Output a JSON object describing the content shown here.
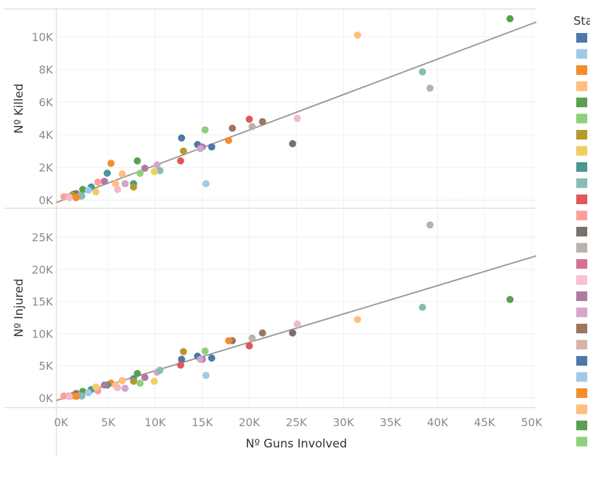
{
  "chart_data": {
    "type": "scatter",
    "x_axis": {
      "label": "Nº Guns Involved",
      "range": [
        -500,
        50500
      ],
      "ticks": [
        0,
        5000,
        10000,
        15000,
        20000,
        25000,
        30000,
        35000,
        40000,
        45000,
        50000
      ],
      "tick_labels": [
        "0K",
        "5K",
        "10K",
        "15K",
        "20K",
        "25K",
        "30K",
        "35K",
        "40K",
        "45K",
        "50K"
      ]
    },
    "panels": [
      {
        "ylabel": "Nº Killed",
        "ylim": [
          -500,
          11700
        ],
        "ticks": [
          0,
          2000,
          4000,
          6000,
          8000,
          10000
        ],
        "tick_labels": [
          "0K",
          "2K",
          "4K",
          "6K",
          "8K",
          "10K"
        ],
        "trend_line": {
          "x": [
            -500,
            50500
          ],
          "y": [
            -150,
            10900
          ]
        }
      },
      {
        "ylabel": "Nº Injured",
        "ylim": [
          -1500,
          29500
        ],
        "ticks": [
          0,
          5000,
          10000,
          15000,
          20000,
          25000
        ],
        "tick_labels": [
          "0K",
          "5K",
          "10K",
          "15K",
          "20K",
          "25K"
        ],
        "trend_line": {
          "x": [
            -500,
            50500
          ],
          "y": [
            -400,
            22100
          ]
        }
      }
    ],
    "points": [
      {
        "x": 47700,
        "killed": 11100,
        "injured": 15300,
        "color": "#59a14f"
      },
      {
        "x": 31500,
        "killed": 10100,
        "injured": 12200,
        "color": "#ffbe7d"
      },
      {
        "x": 38400,
        "killed": 7850,
        "injured": 14100,
        "color": "#86bcb6"
      },
      {
        "x": 39200,
        "killed": 6850,
        "injured": 26900,
        "color": "#bab0ac"
      },
      {
        "x": 25100,
        "killed": 5000,
        "injured": 11500,
        "color": "#f5b8cb"
      },
      {
        "x": 20000,
        "killed": 4950,
        "injured": 8100,
        "color": "#e15759"
      },
      {
        "x": 21400,
        "killed": 4800,
        "injured": 10100,
        "color": "#9d7660"
      },
      {
        "x": 20300,
        "killed": 4500,
        "injured": 9300,
        "color": "#bab0ac"
      },
      {
        "x": 18200,
        "killed": 4400,
        "injured": 8900,
        "color": "#9d7660"
      },
      {
        "x": 15300,
        "killed": 4300,
        "injured": 7300,
        "color": "#8cd17d"
      },
      {
        "x": 12800,
        "killed": 3800,
        "injured": 6000,
        "color": "#4e79a7"
      },
      {
        "x": 17800,
        "killed": 3650,
        "injured": 8900,
        "color": "#f28e2b"
      },
      {
        "x": 24600,
        "killed": 3450,
        "injured": 10100,
        "color": "#79706e"
      },
      {
        "x": 14500,
        "killed": 3400,
        "injured": 6500,
        "color": "#4e79a7"
      },
      {
        "x": 16000,
        "killed": 3250,
        "injured": 6200,
        "color": "#4e79a7"
      },
      {
        "x": 15000,
        "killed": 3250,
        "injured": 6000,
        "color": "#b07aa1"
      },
      {
        "x": 14800,
        "killed": 3150,
        "injured": 6000,
        "color": "#d4a6c8"
      },
      {
        "x": 13000,
        "killed": 3000,
        "injured": 7200,
        "color": "#b6992d"
      },
      {
        "x": 8100,
        "killed": 2400,
        "injured": 3800,
        "color": "#59a14f"
      },
      {
        "x": 12700,
        "killed": 2400,
        "injured": 5100,
        "color": "#e15759"
      },
      {
        "x": 5300,
        "killed": 2250,
        "injured": 2300,
        "color": "#f28e2b"
      },
      {
        "x": 10200,
        "killed": 2150,
        "injured": 4000,
        "color": "#d4a6c8"
      },
      {
        "x": 8900,
        "killed": 1950,
        "injured": 3200,
        "color": "#b07aa1"
      },
      {
        "x": 10500,
        "killed": 1800,
        "injured": 4300,
        "color": "#86bcb6"
      },
      {
        "x": 9900,
        "killed": 1750,
        "injured": 2600,
        "color": "#f1ce63"
      },
      {
        "x": 4900,
        "killed": 1650,
        "injured": 2000,
        "color": "#499894"
      },
      {
        "x": 8400,
        "killed": 1650,
        "injured": 2300,
        "color": "#8cd17d"
      },
      {
        "x": 6500,
        "killed": 1600,
        "injured": 2700,
        "color": "#ffbe7d"
      },
      {
        "x": 4600,
        "killed": 1150,
        "injured": 2000,
        "color": "#b07aa1"
      },
      {
        "x": 3900,
        "killed": 1100,
        "injured": 1100,
        "color": "#ff9d9a"
      },
      {
        "x": 15400,
        "killed": 1000,
        "injured": 3500,
        "color": "#a0cbe8"
      },
      {
        "x": 5800,
        "killed": 1000,
        "injured": 2000,
        "color": "#ffbe7d"
      },
      {
        "x": 6800,
        "killed": 1000,
        "injured": 1500,
        "color": "#d4a6c8"
      },
      {
        "x": 7700,
        "killed": 1000,
        "injured": 3000,
        "color": "#499894"
      },
      {
        "x": 7700,
        "killed": 800,
        "injured": 2600,
        "color": "#b6992d"
      },
      {
        "x": 3200,
        "killed": 800,
        "injured": 1300,
        "color": "#499894"
      },
      {
        "x": 6000,
        "killed": 650,
        "injured": 1600,
        "color": "#f5b8cb"
      },
      {
        "x": 2300,
        "killed": 650,
        "injured": 1000,
        "color": "#59a14f"
      },
      {
        "x": 2900,
        "killed": 600,
        "injured": 800,
        "color": "#a0cbe8"
      },
      {
        "x": 3700,
        "killed": 500,
        "injured": 1700,
        "color": "#f1ce63"
      },
      {
        "x": 1600,
        "killed": 400,
        "injured": 700,
        "color": "#9d7660"
      },
      {
        "x": 1300,
        "killed": 350,
        "injured": 400,
        "color": "#79706e"
      },
      {
        "x": 1200,
        "killed": 300,
        "injured": 350,
        "color": "#b6992d"
      },
      {
        "x": 2000,
        "killed": 250,
        "injured": 350,
        "color": "#bab0ac"
      },
      {
        "x": 2200,
        "killed": 250,
        "injured": 300,
        "color": "#86bcb6"
      },
      {
        "x": 800,
        "killed": 200,
        "injured": 300,
        "color": "#d4a6c8"
      },
      {
        "x": 300,
        "killed": 200,
        "injured": 300,
        "color": "#ff9d9a"
      },
      {
        "x": 900,
        "killed": 150,
        "injured": 200,
        "color": "#f5b8cb"
      },
      {
        "x": 1600,
        "killed": 150,
        "injured": 250,
        "color": "#f28e2b"
      }
    ]
  },
  "legend": {
    "title": "Sta",
    "swatches": [
      "#4e79a7",
      "#a0cbe8",
      "#f28e2b",
      "#ffbe7d",
      "#59a14f",
      "#8cd17d",
      "#b6992d",
      "#f1ce63",
      "#499894",
      "#86bcb6",
      "#e15759",
      "#ff9d9a",
      "#79706e",
      "#bab0ac",
      "#d37295",
      "#fabfd2",
      "#b07aa1",
      "#d4a6c8",
      "#9d7660",
      "#d7b5a6",
      "#4e79a7",
      "#a0cbe8",
      "#f28e2b",
      "#ffbe7d",
      "#59a14f",
      "#8cd17d"
    ]
  }
}
